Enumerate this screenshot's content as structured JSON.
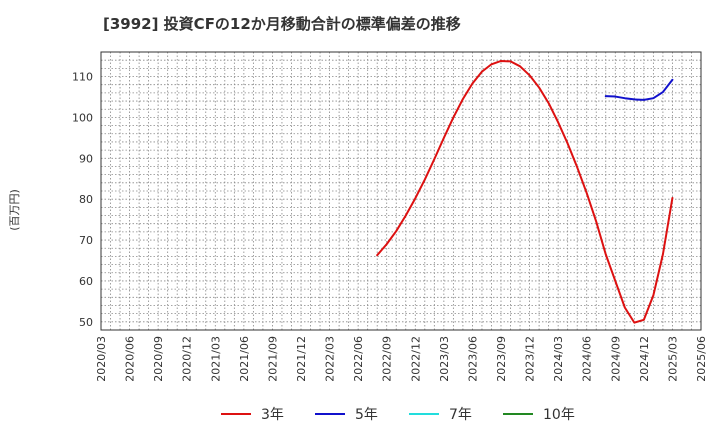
{
  "chart_data": {
    "type": "line",
    "title": "[3992]  投資CFの12か月移動合計の標準偏差の推移",
    "ylabel": "(百万円)",
    "xlabel": "",
    "grid": true,
    "legend_position": "bottom",
    "xlim": [
      "2020/03",
      "2025/06"
    ],
    "ylim": [
      48,
      116
    ],
    "y_ticks": [
      50,
      60,
      70,
      80,
      90,
      100,
      110
    ],
    "x_ticks": [
      "2020/03",
      "2020/06",
      "2020/09",
      "2020/12",
      "2021/03",
      "2021/06",
      "2021/09",
      "2021/12",
      "2022/03",
      "2022/06",
      "2022/09",
      "2022/12",
      "2023/03",
      "2023/06",
      "2023/09",
      "2023/12",
      "2024/03",
      "2024/06",
      "2024/09",
      "2024/12",
      "2025/03",
      "2025/06"
    ],
    "series": [
      {
        "name": "3年",
        "color": "#dd1111",
        "points": [
          [
            "2022/08",
            66.3
          ],
          [
            "2022/09",
            69.0
          ],
          [
            "2022/10",
            72.2
          ],
          [
            "2022/11",
            76.0
          ],
          [
            "2022/12",
            80.2
          ],
          [
            "2023/01",
            84.8
          ],
          [
            "2023/02",
            89.8
          ],
          [
            "2023/03",
            95.0
          ],
          [
            "2023/04",
            100.0
          ],
          [
            "2023/05",
            104.5
          ],
          [
            "2023/06",
            108.3
          ],
          [
            "2023/07",
            111.2
          ],
          [
            "2023/08",
            113.0
          ],
          [
            "2023/09",
            113.8
          ],
          [
            "2023/10",
            113.7
          ],
          [
            "2023/11",
            112.5
          ],
          [
            "2023/12",
            110.3
          ],
          [
            "2024/01",
            107.3
          ],
          [
            "2024/02",
            103.5
          ],
          [
            "2024/03",
            98.8
          ],
          [
            "2024/04",
            93.6
          ],
          [
            "2024/05",
            87.8
          ],
          [
            "2024/06",
            81.5
          ],
          [
            "2024/07",
            74.5
          ],
          [
            "2024/08",
            66.5
          ],
          [
            "2024/09",
            60.0
          ],
          [
            "2024/10",
            53.5
          ],
          [
            "2024/11",
            49.8
          ],
          [
            "2024/12",
            50.5
          ],
          [
            "2025/01",
            56.5
          ],
          [
            "2025/02",
            66.5
          ],
          [
            "2025/03",
            80.3
          ]
        ]
      },
      {
        "name": "5年",
        "color": "#1111cc",
        "points": [
          [
            "2024/08",
            105.2
          ],
          [
            "2024/09",
            105.1
          ],
          [
            "2024/10",
            104.7
          ],
          [
            "2024/11",
            104.4
          ],
          [
            "2024/12",
            104.3
          ],
          [
            "2025/01",
            104.7
          ],
          [
            "2025/02",
            106.2
          ],
          [
            "2025/03",
            109.2
          ]
        ]
      },
      {
        "name": "7年",
        "color": "#22dddd",
        "points": []
      },
      {
        "name": "10年",
        "color": "#228822",
        "points": []
      }
    ]
  }
}
